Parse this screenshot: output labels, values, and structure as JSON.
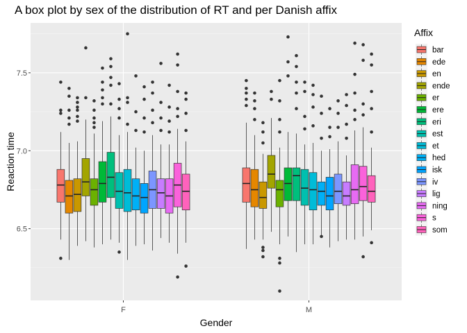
{
  "chart_data": {
    "type": "boxplot",
    "title": "A box plot by sex of the distribution of RT and per Danish affix",
    "xlabel": "Gender",
    "ylabel": "Reaction time",
    "categories": [
      "F",
      "M"
    ],
    "ylim": [
      6.04,
      7.82
    ],
    "yticks": [
      6.5,
      7.0,
      7.5
    ],
    "ytick_labels": [
      "6.5",
      "7.0",
      "7.5"
    ],
    "grid": true,
    "legend": {
      "title": "Affix",
      "position": "right"
    },
    "series": [
      {
        "name": "bar",
        "color": "#F8766D",
        "F": {
          "lo": 6.43,
          "q1": 6.67,
          "med": 6.78,
          "q3": 6.88,
          "hi": 7.12,
          "outliers": [
            6.31,
            7.24,
            7.26,
            7.44
          ]
        },
        "M": {
          "lo": 6.37,
          "q1": 6.67,
          "med": 6.79,
          "q3": 6.89,
          "hi": 7.18,
          "outliers": [
            7.29,
            7.33,
            7.37,
            7.4,
            7.45
          ]
        }
      },
      {
        "name": "ede",
        "color": "#E58700",
        "F": {
          "lo": 6.3,
          "q1": 6.6,
          "med": 6.71,
          "q3": 6.81,
          "hi": 7.05,
          "outliers": [
            7.17,
            7.21,
            7.26,
            7.35,
            7.4
          ]
        },
        "M": {
          "lo": 6.43,
          "q1": 6.64,
          "med": 6.75,
          "q3": 6.88,
          "hi": 7.1,
          "outliers": [
            7.2,
            7.27,
            7.32,
            7.37
          ]
        }
      },
      {
        "name": "en",
        "color": "#C99800",
        "F": {
          "lo": 6.39,
          "q1": 6.61,
          "med": 6.72,
          "q3": 6.82,
          "hi": 7.06,
          "outliers": [
            7.19,
            7.22,
            7.26,
            7.28,
            7.31,
            7.34
          ]
        },
        "M": {
          "lo": 6.43,
          "q1": 6.63,
          "med": 6.7,
          "q3": 6.8,
          "hi": 6.98,
          "outliers": [
            6.32,
            6.36,
            6.38,
            7.05,
            7.12,
            7.18
          ]
        }
      },
      {
        "name": "ende",
        "color": "#A3A500",
        "F": {
          "lo": 6.42,
          "q1": 6.71,
          "med": 6.8,
          "q3": 6.95,
          "hi": 7.2,
          "outliers": [
            7.34,
            7.66
          ]
        },
        "M": {
          "lo": 6.48,
          "q1": 6.76,
          "med": 6.85,
          "q3": 6.97,
          "hi": 7.21,
          "outliers": [
            7.33,
            7.38
          ]
        }
      },
      {
        "name": "er",
        "color": "#6BB100",
        "F": {
          "lo": 6.38,
          "q1": 6.65,
          "med": 6.75,
          "q3": 6.82,
          "hi": 7.11,
          "outliers": [
            7.15,
            7.18,
            7.21,
            7.26,
            7.32
          ]
        },
        "M": {
          "lo": 6.4,
          "q1": 6.64,
          "med": 6.75,
          "q3": 6.81,
          "hi": 7.02,
          "outliers": [
            6.1,
            6.28,
            6.31,
            7.12,
            7.2,
            7.32,
            7.45
          ]
        }
      },
      {
        "name": "ere",
        "color": "#00BA38",
        "F": {
          "lo": 6.4,
          "q1": 6.67,
          "med": 6.79,
          "q3": 6.93,
          "hi": 7.19,
          "outliers": [
            7.3,
            7.34,
            7.39,
            7.44,
            7.53
          ]
        },
        "M": {
          "lo": 6.45,
          "q1": 6.68,
          "med": 6.79,
          "q3": 6.89,
          "hi": 7.12,
          "outliers": [
            7.48,
            7.57,
            7.73
          ]
        }
      },
      {
        "name": "eri",
        "color": "#00BF7D",
        "F": {
          "lo": 6.43,
          "q1": 6.7,
          "med": 6.83,
          "q3": 6.99,
          "hi": 7.22,
          "outliers": [
            7.3,
            7.42,
            7.47,
            7.54,
            7.59
          ]
        },
        "M": {
          "lo": 6.35,
          "q1": 6.68,
          "med": 6.84,
          "q3": 6.89,
          "hi": 7.11,
          "outliers": [
            7.27,
            7.37,
            7.44,
            7.54,
            7.61
          ]
        }
      },
      {
        "name": "est",
        "color": "#00C0AF",
        "F": {
          "lo": 6.41,
          "q1": 6.63,
          "med": 6.74,
          "q3": 6.86,
          "hi": 7.1,
          "outliers": [
            6.35,
            7.21,
            7.27,
            7.33,
            7.43
          ]
        },
        "M": {
          "lo": 6.4,
          "q1": 6.65,
          "med": 6.76,
          "q3": 6.88,
          "hi": 7.04,
          "outliers": [
            7.14,
            7.22,
            7.38,
            7.44
          ]
        }
      },
      {
        "name": "et",
        "color": "#00BCD8",
        "F": {
          "lo": 6.3,
          "q1": 6.61,
          "med": 6.73,
          "q3": 6.88,
          "hi": 7.12,
          "outliers": [
            7.17,
            7.31,
            7.34,
            7.75
          ]
        },
        "M": {
          "lo": 6.4,
          "q1": 6.62,
          "med": 6.75,
          "q3": 6.86,
          "hi": 7.05,
          "outliers": [
            7.16,
            7.28,
            7.36,
            7.42
          ]
        }
      },
      {
        "name": "hed",
        "color": "#00B0F6",
        "F": {
          "lo": 6.39,
          "q1": 6.62,
          "med": 6.71,
          "q3": 6.82,
          "hi": 7.02,
          "outliers": [
            7.13,
            7.25,
            7.48
          ]
        },
        "M": {
          "lo": 6.45,
          "q1": 6.65,
          "med": 6.74,
          "q3": 6.8,
          "hi": 7.0,
          "outliers": [
            6.45,
            7.08,
            7.24,
            7.35
          ]
        }
      },
      {
        "name": "isk",
        "color": "#00A5FF",
        "F": {
          "lo": 6.4,
          "q1": 6.6,
          "med": 6.7,
          "q3": 6.79,
          "hi": 7.0,
          "outliers": [
            7.12,
            7.21,
            7.33,
            7.41
          ]
        },
        "M": {
          "lo": 6.38,
          "q1": 6.62,
          "med": 6.71,
          "q3": 6.83,
          "hi": 7.01,
          "outliers": [
            7.09,
            7.15,
            7.27
          ]
        }
      },
      {
        "name": "iv",
        "color": "#7C96FF",
        "F": {
          "lo": 6.36,
          "q1": 6.63,
          "med": 6.75,
          "q3": 6.87,
          "hi": 7.1,
          "outliers": [
            7.18,
            7.26,
            7.37,
            7.44
          ]
        },
        "M": {
          "lo": 6.42,
          "q1": 6.66,
          "med": 6.74,
          "q3": 6.85,
          "hi": 7.06,
          "outliers": [
            7.15,
            7.24,
            7.32
          ]
        }
      },
      {
        "name": "lig",
        "color": "#C77CFF",
        "F": {
          "lo": 6.44,
          "q1": 6.63,
          "med": 6.73,
          "q3": 6.82,
          "hi": 7.04,
          "outliers": [
            7.13,
            7.21,
            7.31,
            7.56
          ]
        },
        "M": {
          "lo": 6.43,
          "q1": 6.65,
          "med": 6.71,
          "q3": 6.8,
          "hi": 6.97,
          "outliers": [
            7.08,
            7.17,
            7.29,
            7.36
          ]
        }
      },
      {
        "name": "ning",
        "color": "#E76BF3",
        "F": {
          "lo": 6.41,
          "q1": 6.6,
          "med": 6.71,
          "q3": 6.82,
          "hi": 7.04,
          "outliers": [
            7.12,
            7.19,
            7.28,
            7.42
          ]
        },
        "M": {
          "lo": 6.43,
          "q1": 6.66,
          "med": 6.75,
          "q3": 6.91,
          "hi": 7.13,
          "outliers": [
            7.2,
            7.26,
            7.37,
            7.49,
            7.69
          ]
        }
      },
      {
        "name": "s",
        "color": "#FA62DB",
        "F": {
          "lo": 6.34,
          "q1": 6.64,
          "med": 6.78,
          "q3": 6.92,
          "hi": 7.14,
          "outliers": [
            6.19,
            7.22,
            7.27,
            7.38,
            7.55,
            7.62
          ]
        },
        "M": {
          "lo": 6.45,
          "q1": 6.68,
          "med": 6.77,
          "q3": 6.9,
          "hi": 7.15,
          "outliers": [
            6.32,
            7.23,
            7.3,
            7.58,
            7.68
          ]
        }
      },
      {
        "name": "som",
        "color": "#FF62BC",
        "F": {
          "lo": 6.41,
          "q1": 6.62,
          "med": 6.74,
          "q3": 6.85,
          "hi": 7.06,
          "outliers": [
            6.26,
            7.13,
            7.24,
            7.33,
            7.37
          ]
        },
        "M": {
          "lo": 6.49,
          "q1": 6.67,
          "med": 6.74,
          "q3": 6.84,
          "hi": 7.02,
          "outliers": [
            6.41,
            7.12,
            7.27,
            7.38,
            7.55,
            7.62
          ]
        }
      }
    ]
  }
}
